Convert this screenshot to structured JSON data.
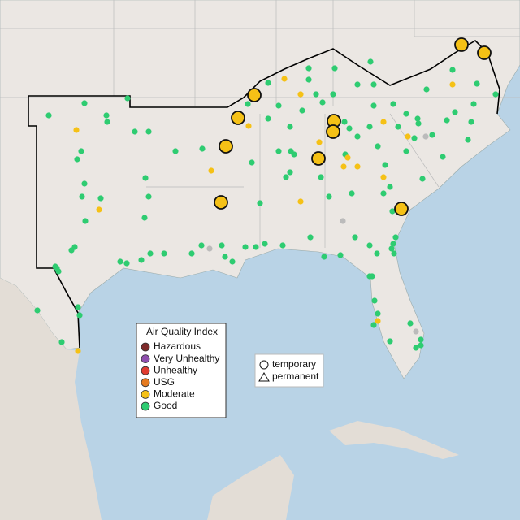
{
  "legend": {
    "title": "Air Quality Index",
    "items": [
      {
        "label": "Hazardous",
        "color": "#7e2a2a"
      },
      {
        "label": "Very Unhealthy",
        "color": "#8e4fae"
      },
      {
        "label": "Unhealthy",
        "color": "#e03c31"
      },
      {
        "label": "USG",
        "color": "#e57a1f"
      },
      {
        "label": "Moderate",
        "color": "#f5c116"
      },
      {
        "label": "Good",
        "color": "#2ecc71"
      }
    ]
  },
  "shape_legend": {
    "items": [
      {
        "label": "temporary",
        "shape": "circle"
      },
      {
        "label": "permanent",
        "shape": "triangle"
      }
    ]
  }
}
